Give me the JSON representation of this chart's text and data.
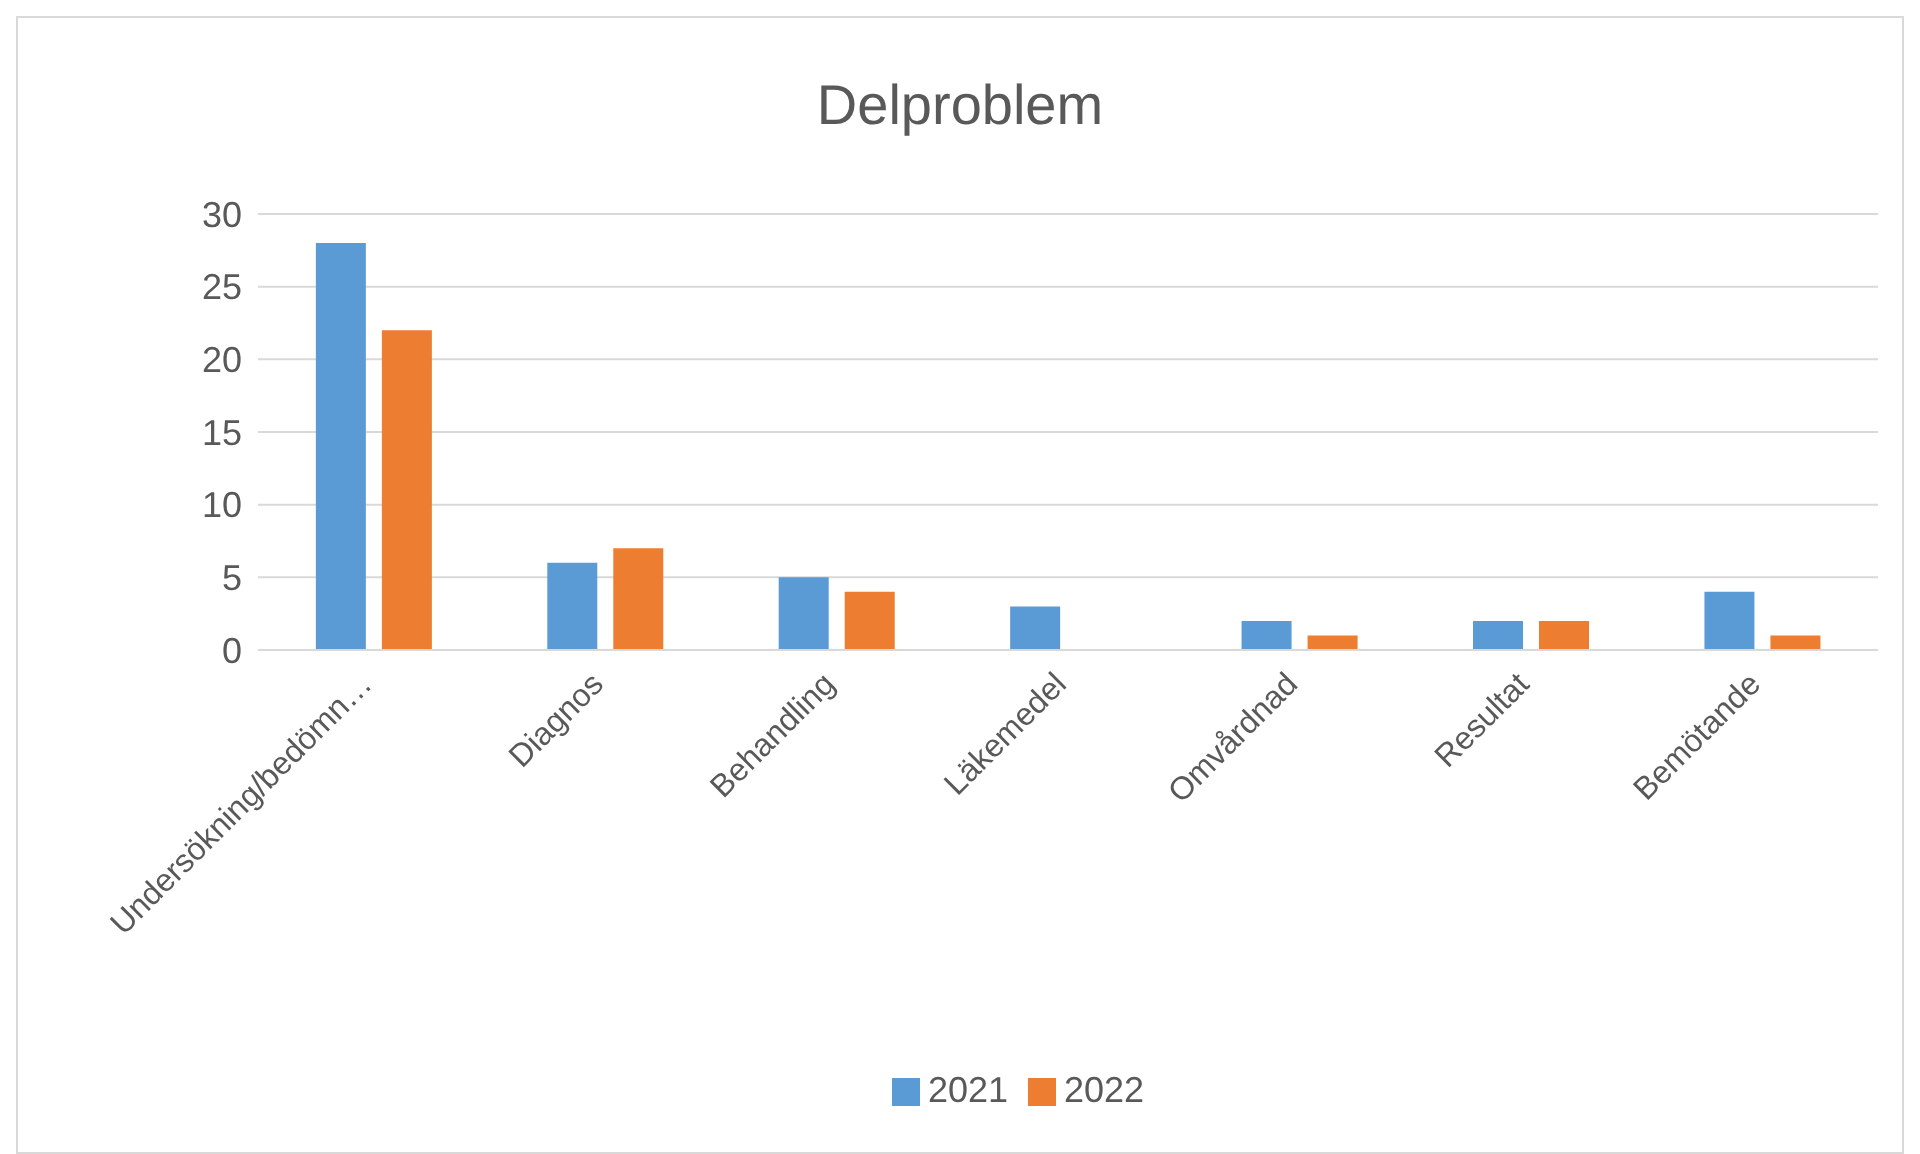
{
  "chart_data": {
    "type": "bar",
    "title": "Delproblem",
    "categories": [
      "Undersökning/bedömn…",
      "Diagnos",
      "Behandling",
      "Läkemedel",
      "Omvårdnad",
      "Resultat",
      "Bemötande"
    ],
    "series": [
      {
        "name": "2021",
        "color": "#5b9bd5",
        "values": [
          28,
          6,
          5,
          3,
          2,
          2,
          4
        ]
      },
      {
        "name": "2022",
        "color": "#ed7d31",
        "values": [
          22,
          7,
          4,
          0,
          1,
          2,
          1
        ]
      }
    ],
    "ylim": [
      0,
      30
    ],
    "yticks": [
      0,
      5,
      10,
      15,
      20,
      25,
      30
    ],
    "grid": "y",
    "legend": "bottom"
  }
}
